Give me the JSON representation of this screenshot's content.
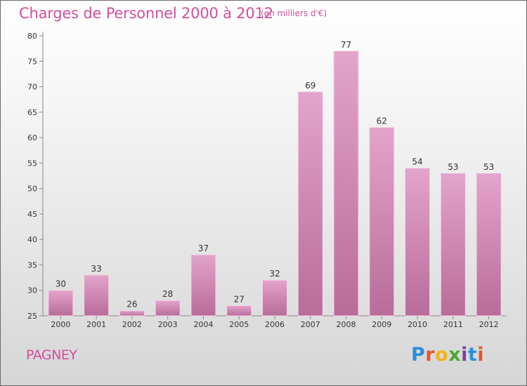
{
  "header": {
    "title": "Charges de Personnel 2000 à 2012",
    "subtitle": "(en milliers d'€)"
  },
  "footer": {
    "place": "PAGNEY",
    "logo": "Proxiti",
    "logo_colors": [
      "#2a8fd8",
      "#e8542a",
      "#f3b21a",
      "#4aa82f",
      "#7b3fa0",
      "#2a8fd8",
      "#e8542a"
    ]
  },
  "chart_data": {
    "type": "bar",
    "title": "Charges de Personnel 2000 à 2012",
    "subtitle": "(en milliers d'€)",
    "xlabel": "",
    "ylabel": "",
    "categories": [
      "2000",
      "2001",
      "2002",
      "2003",
      "2004",
      "2005",
      "2006",
      "2007",
      "2008",
      "2009",
      "2010",
      "2011",
      "2012"
    ],
    "values": [
      30,
      33,
      26,
      28,
      37,
      27,
      32,
      69,
      77,
      62,
      54,
      53,
      53
    ],
    "ylim": [
      25,
      80
    ],
    "yticks": [
      "25",
      "30",
      "35",
      "40",
      "45",
      "50",
      "55",
      "60",
      "65",
      "70",
      "75",
      "80"
    ],
    "grid": false,
    "legend": "none",
    "bar_color_top": "#e3a4cb",
    "bar_color_bottom": "#b86c99"
  }
}
